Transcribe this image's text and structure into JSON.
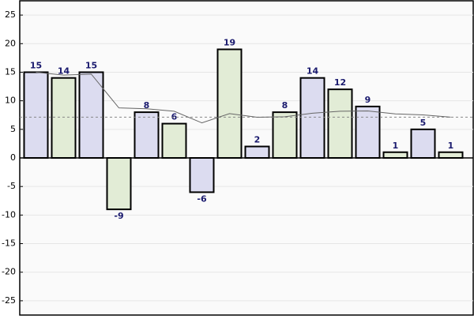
{
  "chart_data": {
    "type": "bar",
    "categories": [
      null,
      null,
      null,
      null,
      null,
      null,
      null,
      null,
      null,
      null,
      null,
      null,
      null,
      null,
      null,
      null
    ],
    "values": [
      15,
      14,
      15,
      -9,
      8,
      6,
      -6,
      19,
      2,
      8,
      14,
      12,
      9,
      1,
      5,
      1
    ],
    "colors": [
      "#dcdcf0",
      "#e2ecd6"
    ],
    "line": {
      "values": [
        15,
        14.5,
        14.67,
        8.75,
        8.6,
        8.17,
        6.14,
        7.75,
        7.11,
        7.2,
        7.82,
        8.17,
        8.23,
        7.71,
        7.53,
        7.13
      ],
      "color": "#666666"
    },
    "reference_line": {
      "value": 7.13,
      "color": "#888888"
    },
    "ylim": [
      -27.5,
      27.5
    ],
    "yticks": [
      -25,
      -20,
      -15,
      -10,
      -5,
      0,
      5,
      10,
      15,
      20,
      25
    ],
    "grid": true
  }
}
